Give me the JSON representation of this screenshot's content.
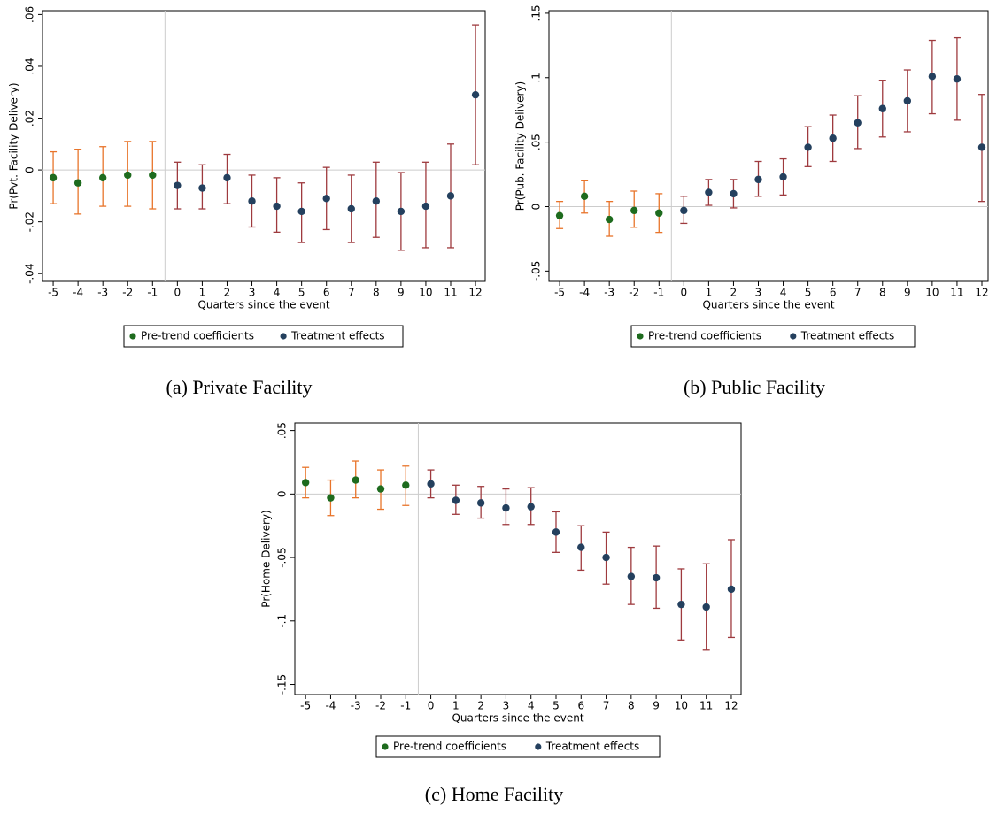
{
  "chart_data": [
    {
      "type": "errorbar",
      "caption": "(a) Private Facility",
      "y_label": "Pr(Pvt. Facility  Delivery)",
      "x_label": "Quarters since the event",
      "xlim": [
        -5.43,
        12.39
      ],
      "xticks": [
        -5,
        -4,
        -3,
        -2,
        -1,
        0,
        1,
        2,
        3,
        4,
        5,
        6,
        7,
        8,
        9,
        10,
        11,
        12
      ],
      "ylim": [
        -0.043,
        0.0615
      ],
      "yticks": [
        {
          "value": -0.04,
          "label": "-.04"
        },
        {
          "value": -0.02,
          "label": "-.02"
        },
        0,
        {
          "value": 0.02,
          "label": ".02"
        },
        {
          "value": 0.04,
          "label": ".04"
        },
        {
          "value": 0.06,
          "label": ".06"
        }
      ],
      "vline": -0.5,
      "hline": 0,
      "legend": "bottom",
      "series": [
        {
          "name": "Pre-trend coefficients",
          "color": "#1e6b1e",
          "error_color": "#e8742a",
          "x": [
            -5,
            -4,
            -3,
            -2,
            -1
          ],
          "values": [
            -0.003,
            -0.005,
            -0.003,
            -0.002,
            -0.002
          ],
          "lower": [
            -0.013,
            -0.017,
            -0.014,
            -0.014,
            -0.015
          ],
          "upper": [
            0.007,
            0.008,
            0.009,
            0.011,
            0.011
          ]
        },
        {
          "name": "Treatment effects",
          "color": "#24405e",
          "error_color": "#9e3a3e",
          "x": [
            0,
            1,
            2,
            3,
            4,
            5,
            6,
            7,
            8,
            9,
            10,
            11,
            12
          ],
          "values": [
            -0.006,
            -0.007,
            -0.003,
            -0.012,
            -0.014,
            -0.016,
            -0.011,
            -0.015,
            -0.012,
            -0.016,
            -0.014,
            -0.01,
            0.029
          ],
          "lower": [
            -0.015,
            -0.015,
            -0.013,
            -0.022,
            -0.024,
            -0.028,
            -0.023,
            -0.028,
            -0.026,
            -0.031,
            -0.03,
            -0.03,
            0.002
          ],
          "upper": [
            0.003,
            0.002,
            0.006,
            -0.002,
            -0.003,
            -0.005,
            0.001,
            -0.002,
            0.003,
            -0.001,
            0.003,
            0.01,
            0.056
          ]
        }
      ]
    },
    {
      "type": "errorbar",
      "caption": "(b) Public Facility",
      "y_label": "Pr(Pub. Facility  Delivery)",
      "x_label": "Quarters since the event",
      "xlim": [
        -5.43,
        12.25
      ],
      "xticks": [
        -5,
        -4,
        -3,
        -2,
        -1,
        0,
        1,
        2,
        3,
        4,
        5,
        6,
        7,
        8,
        9,
        10,
        11,
        12
      ],
      "ylim": [
        -0.058,
        0.152
      ],
      "yticks": [
        {
          "value": -0.05,
          "label": "-.05"
        },
        0,
        {
          "value": 0.05,
          "label": ".05"
        },
        {
          "value": 0.1,
          "label": ".1"
        },
        {
          "value": 0.15,
          "label": ".15"
        }
      ],
      "vline": -0.5,
      "hline": 0,
      "legend": "bottom",
      "series": [
        {
          "name": "Pre-trend coefficients",
          "color": "#1e6b1e",
          "error_color": "#e8742a",
          "x": [
            -5,
            -4,
            -3,
            -2,
            -1
          ],
          "values": [
            -0.007,
            0.008,
            -0.01,
            -0.003,
            -0.005
          ],
          "lower": [
            -0.017,
            -0.005,
            -0.023,
            -0.016,
            -0.02
          ],
          "upper": [
            0.004,
            0.02,
            0.004,
            0.012,
            0.01
          ]
        },
        {
          "name": "Treatment effects",
          "color": "#24405e",
          "error_color": "#9e3a3e",
          "x": [
            0,
            1,
            2,
            3,
            4,
            5,
            6,
            7,
            8,
            9,
            10,
            11,
            12
          ],
          "values": [
            -0.003,
            0.011,
            0.01,
            0.021,
            0.023,
            0.046,
            0.053,
            0.065,
            0.076,
            0.082,
            0.101,
            0.099,
            0.046
          ],
          "lower": [
            -0.013,
            0.001,
            -0.001,
            0.008,
            0.009,
            0.031,
            0.035,
            0.045,
            0.054,
            0.058,
            0.072,
            0.067,
            0.004
          ],
          "upper": [
            0.008,
            0.021,
            0.021,
            0.035,
            0.037,
            0.062,
            0.071,
            0.086,
            0.098,
            0.106,
            0.129,
            0.131,
            0.087
          ]
        }
      ]
    },
    {
      "type": "errorbar",
      "caption": "(c) Home Facility",
      "y_label": "Pr(Home  Delivery)",
      "x_label": "Quarters since the event",
      "xlim": [
        -5.43,
        12.39
      ],
      "xticks": [
        -5,
        -4,
        -3,
        -2,
        -1,
        0,
        1,
        2,
        3,
        4,
        5,
        6,
        7,
        8,
        9,
        10,
        11,
        12
      ],
      "ylim": [
        -0.158,
        0.056
      ],
      "yticks": [
        {
          "value": -0.15,
          "label": "-.15"
        },
        {
          "value": -0.1,
          "label": "-.1"
        },
        {
          "value": -0.05,
          "label": "-.05"
        },
        0,
        {
          "value": 0.05,
          "label": ".05"
        }
      ],
      "vline": -0.5,
      "hline": 0,
      "legend": "bottom",
      "series": [
        {
          "name": "Pre-trend coefficients",
          "color": "#1e6b1e",
          "error_color": "#e8742a",
          "x": [
            -5,
            -4,
            -3,
            -2,
            -1
          ],
          "values": [
            0.009,
            -0.003,
            0.011,
            0.004,
            0.007
          ],
          "lower": [
            -0.003,
            -0.017,
            -0.003,
            -0.012,
            -0.009
          ],
          "upper": [
            0.021,
            0.011,
            0.026,
            0.019,
            0.022
          ]
        },
        {
          "name": "Treatment effects",
          "color": "#24405e",
          "error_color": "#9e3a3e",
          "x": [
            0,
            1,
            2,
            3,
            4,
            5,
            6,
            7,
            8,
            9,
            10,
            11,
            12
          ],
          "values": [
            0.008,
            -0.005,
            -0.007,
            -0.011,
            -0.01,
            -0.03,
            -0.042,
            -0.05,
            -0.065,
            -0.066,
            -0.087,
            -0.089,
            -0.075
          ],
          "lower": [
            -0.003,
            -0.016,
            -0.019,
            -0.024,
            -0.024,
            -0.046,
            -0.06,
            -0.071,
            -0.087,
            -0.09,
            -0.115,
            -0.123,
            -0.113
          ],
          "upper": [
            0.019,
            0.007,
            0.006,
            0.004,
            0.005,
            -0.014,
            -0.025,
            -0.03,
            -0.042,
            -0.041,
            -0.059,
            -0.055,
            -0.036
          ]
        }
      ]
    }
  ]
}
